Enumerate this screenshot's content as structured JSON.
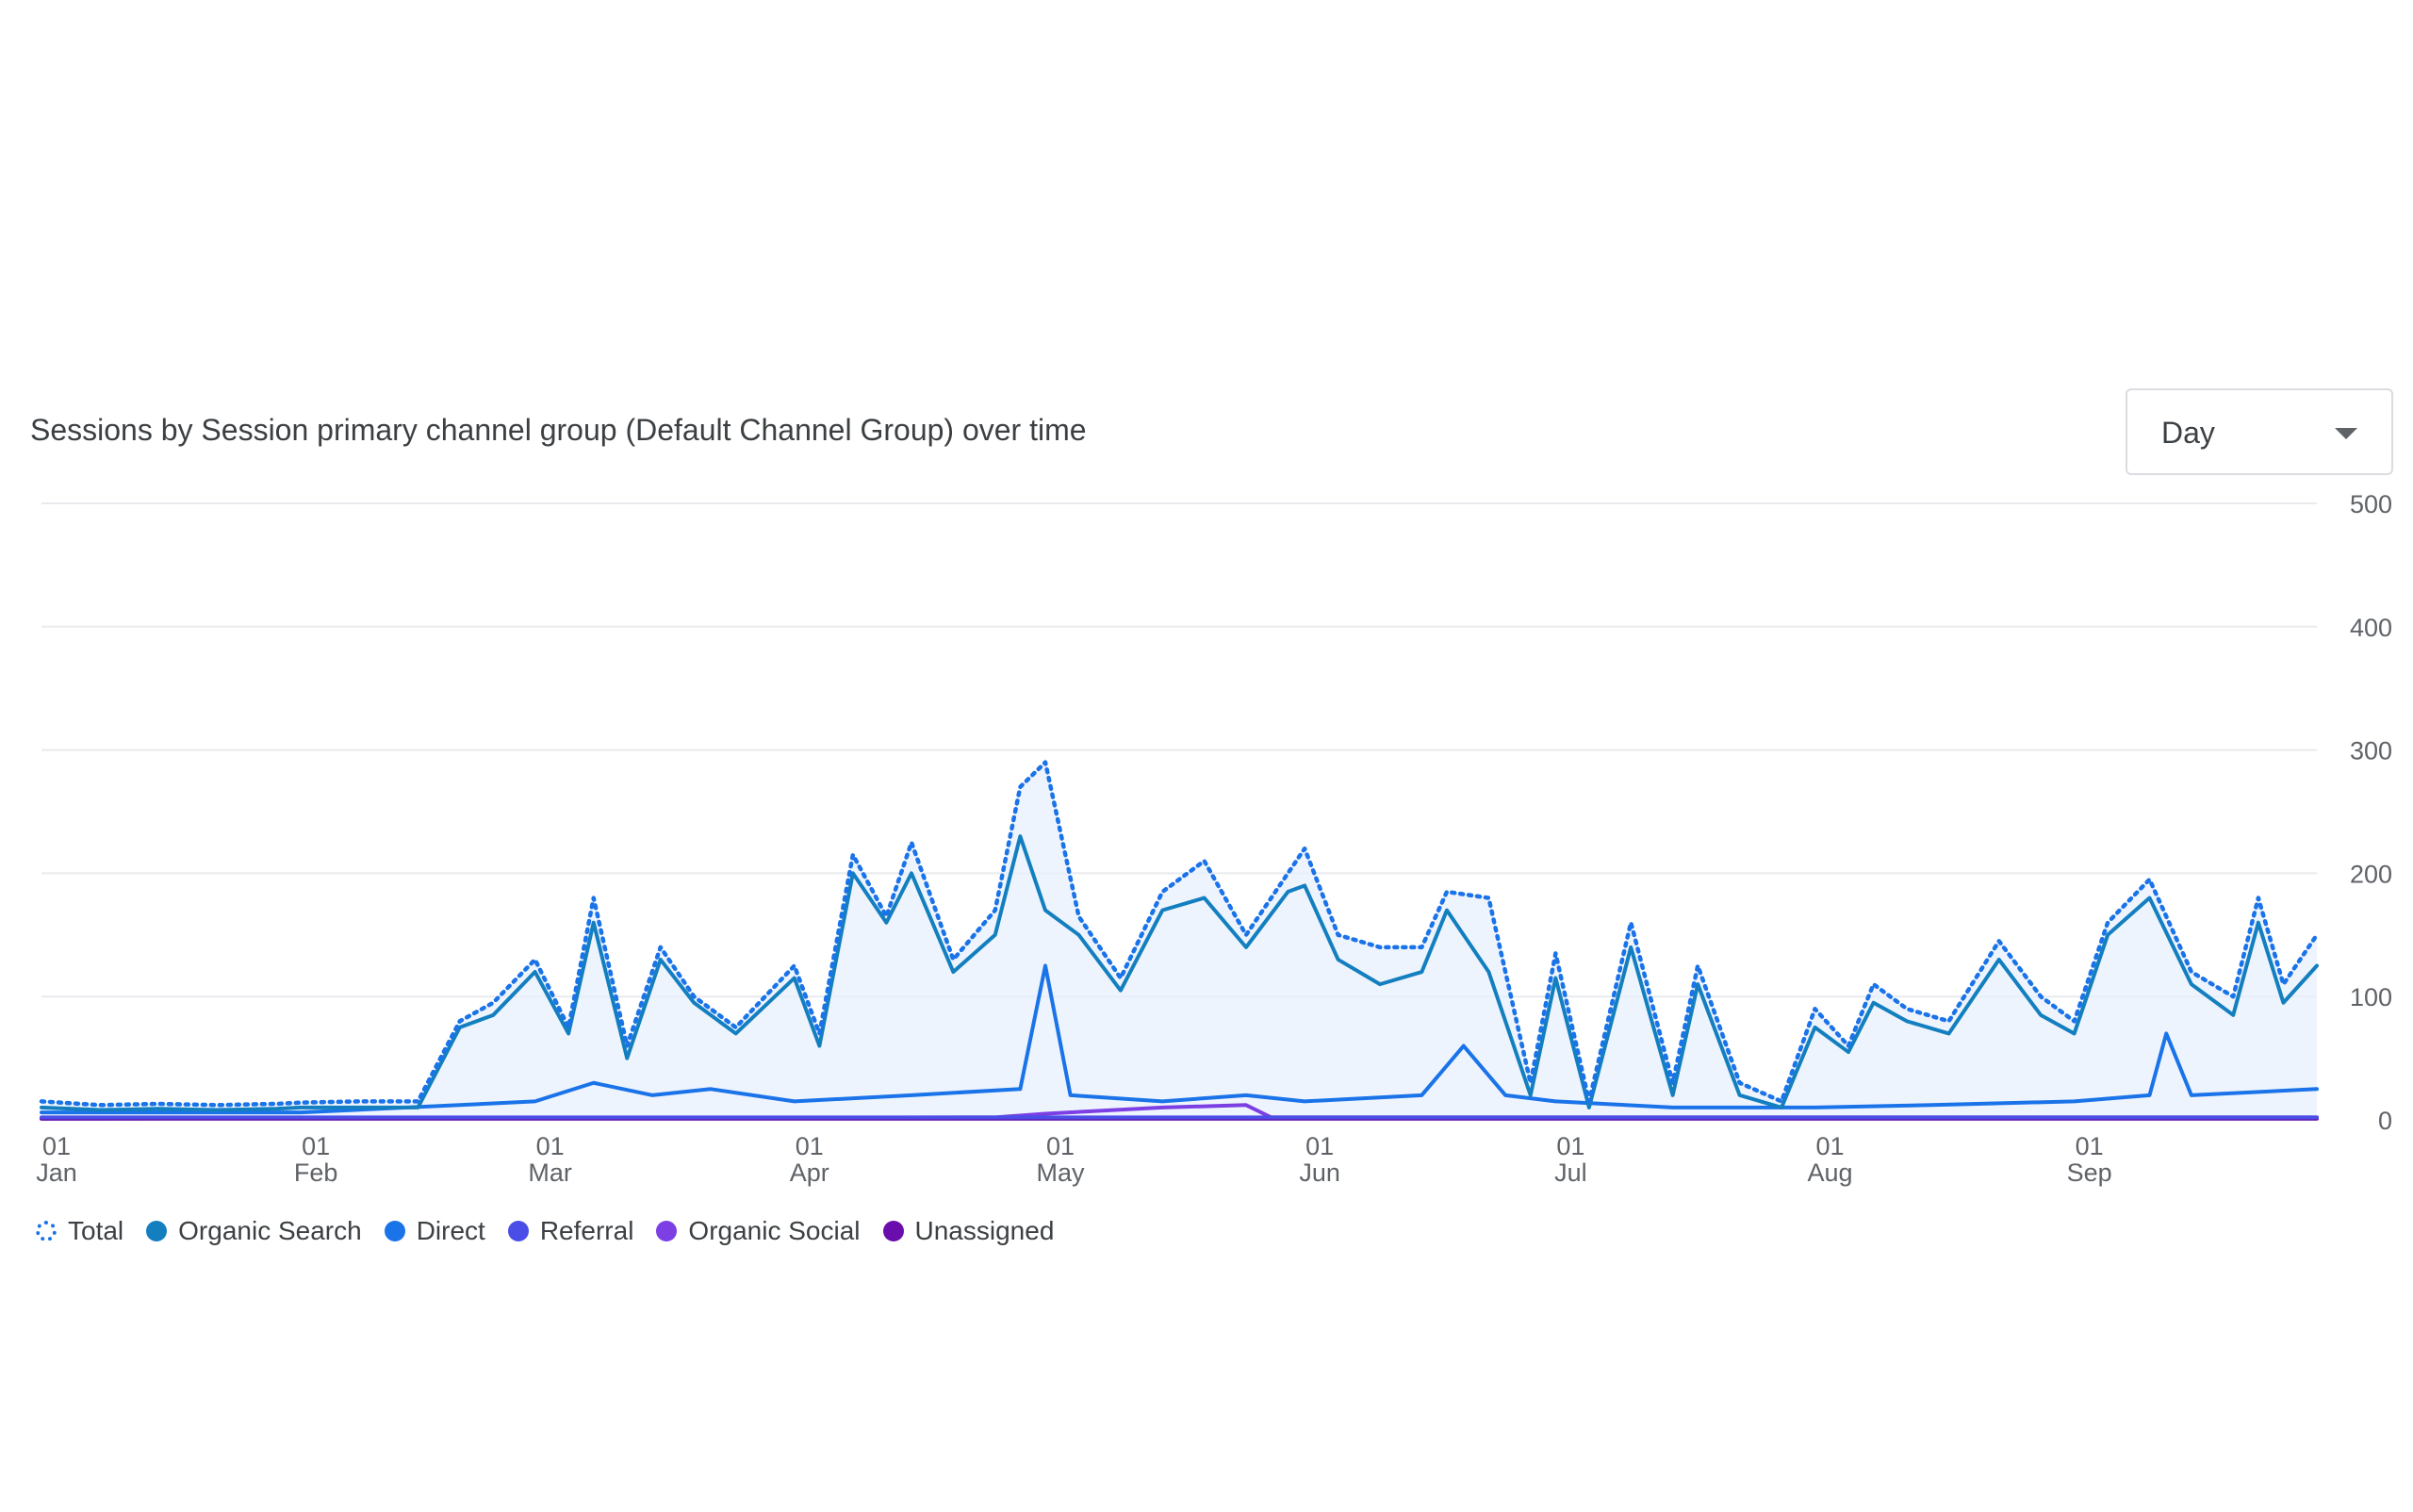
{
  "chart_data": {
    "type": "line",
    "title": "Sessions by Session primary channel group (Default Channel Group) over time",
    "granularity": "Day",
    "xlabel": "",
    "ylabel": "",
    "ylim": [
      0,
      500
    ],
    "y_ticks": [
      "500",
      "400",
      "300",
      "200",
      "100",
      "0"
    ],
    "x_tick_labels": [
      {
        "day": "01",
        "month": "Jan"
      },
      {
        "day": "01",
        "month": "Feb"
      },
      {
        "day": "01",
        "month": "Mar"
      },
      {
        "day": "01",
        "month": "Apr"
      },
      {
        "day": "01",
        "month": "May"
      },
      {
        "day": "01",
        "month": "Jun"
      },
      {
        "day": "01",
        "month": "Jul"
      },
      {
        "day": "01",
        "month": "Aug"
      },
      {
        "day": "01",
        "month": "Sep"
      }
    ],
    "grid": true,
    "legend_position": "bottom-left",
    "series": [
      {
        "name": "Total",
        "color": "#1a73e8",
        "style": "dotted",
        "area": true,
        "points": [
          [
            "Jan 01",
            15
          ],
          [
            "Jan 08",
            12
          ],
          [
            "Jan 15",
            13
          ],
          [
            "Jan 22",
            12
          ],
          [
            "Jan 29",
            13
          ],
          [
            "Feb 01",
            14
          ],
          [
            "Feb 08",
            15
          ],
          [
            "Feb 15",
            15
          ],
          [
            "Feb 20",
            80
          ],
          [
            "Feb 24",
            95
          ],
          [
            "Mar 01",
            130
          ],
          [
            "Mar 05",
            75
          ],
          [
            "Mar 08",
            180
          ],
          [
            "Mar 12",
            60
          ],
          [
            "Mar 16",
            140
          ],
          [
            "Mar 20",
            100
          ],
          [
            "Mar 25",
            75
          ],
          [
            "Apr 01",
            125
          ],
          [
            "Apr 04",
            70
          ],
          [
            "Apr 08",
            215
          ],
          [
            "Apr 12",
            165
          ],
          [
            "Apr 15",
            225
          ],
          [
            "Apr 20",
            130
          ],
          [
            "Apr 25",
            170
          ],
          [
            "Apr 28",
            270
          ],
          [
            "May 01",
            290
          ],
          [
            "May 05",
            165
          ],
          [
            "May 10",
            115
          ],
          [
            "May 15",
            185
          ],
          [
            "May 20",
            210
          ],
          [
            "May 25",
            150
          ],
          [
            "May 30",
            200
          ],
          [
            "Jun 01",
            220
          ],
          [
            "Jun 05",
            150
          ],
          [
            "Jun 10",
            140
          ],
          [
            "Jun 15",
            140
          ],
          [
            "Jun 18",
            185
          ],
          [
            "Jun 23",
            180
          ],
          [
            "Jun 28",
            30
          ],
          [
            "Jul 01",
            135
          ],
          [
            "Jul 05",
            15
          ],
          [
            "Jul 10",
            160
          ],
          [
            "Jul 15",
            30
          ],
          [
            "Jul 18",
            125
          ],
          [
            "Jul 23",
            30
          ],
          [
            "Jul 28",
            15
          ],
          [
            "Aug 01",
            90
          ],
          [
            "Aug 05",
            60
          ],
          [
            "Aug 08",
            110
          ],
          [
            "Aug 12",
            90
          ],
          [
            "Aug 17",
            80
          ],
          [
            "Aug 23",
            145
          ],
          [
            "Aug 28",
            100
          ],
          [
            "Sep 01",
            80
          ],
          [
            "Sep 05",
            160
          ],
          [
            "Sep 10",
            195
          ],
          [
            "Sep 15",
            120
          ],
          [
            "Sep 20",
            100
          ],
          [
            "Sep 23",
            180
          ],
          [
            "Sep 26",
            110
          ],
          [
            "Sep 30",
            150
          ]
        ]
      },
      {
        "name": "Organic Search",
        "color": "#137fbf",
        "style": "solid",
        "points": [
          [
            "Jan 01",
            10
          ],
          [
            "Jan 08",
            8
          ],
          [
            "Jan 15",
            9
          ],
          [
            "Jan 22",
            8
          ],
          [
            "Jan 29",
            9
          ],
          [
            "Feb 01",
            10
          ],
          [
            "Feb 08",
            10
          ],
          [
            "Feb 15",
            10
          ],
          [
            "Feb 20",
            75
          ],
          [
            "Feb 24",
            85
          ],
          [
            "Mar 01",
            120
          ],
          [
            "Mar 05",
            70
          ],
          [
            "Mar 08",
            160
          ],
          [
            "Mar 12",
            50
          ],
          [
            "Mar 16",
            130
          ],
          [
            "Mar 20",
            95
          ],
          [
            "Mar 25",
            70
          ],
          [
            "Apr 01",
            115
          ],
          [
            "Apr 04",
            60
          ],
          [
            "Apr 08",
            200
          ],
          [
            "Apr 12",
            160
          ],
          [
            "Apr 15",
            200
          ],
          [
            "Apr 20",
            120
          ],
          [
            "Apr 25",
            150
          ],
          [
            "Apr 28",
            230
          ],
          [
            "May 01",
            170
          ],
          [
            "May 05",
            150
          ],
          [
            "May 10",
            105
          ],
          [
            "May 15",
            170
          ],
          [
            "May 20",
            180
          ],
          [
            "May 25",
            140
          ],
          [
            "May 30",
            185
          ],
          [
            "Jun 01",
            190
          ],
          [
            "Jun 05",
            130
          ],
          [
            "Jun 10",
            110
          ],
          [
            "Jun 15",
            120
          ],
          [
            "Jun 18",
            170
          ],
          [
            "Jun 23",
            120
          ],
          [
            "Jun 28",
            20
          ],
          [
            "Jul 01",
            115
          ],
          [
            "Jul 05",
            10
          ],
          [
            "Jul 10",
            140
          ],
          [
            "Jul 15",
            20
          ],
          [
            "Jul 18",
            110
          ],
          [
            "Jul 23",
            20
          ],
          [
            "Jul 28",
            10
          ],
          [
            "Aug 01",
            75
          ],
          [
            "Aug 05",
            55
          ],
          [
            "Aug 08",
            95
          ],
          [
            "Aug 12",
            80
          ],
          [
            "Aug 17",
            70
          ],
          [
            "Aug 23",
            130
          ],
          [
            "Aug 28",
            85
          ],
          [
            "Sep 01",
            70
          ],
          [
            "Sep 05",
            150
          ],
          [
            "Sep 10",
            180
          ],
          [
            "Sep 15",
            110
          ],
          [
            "Sep 20",
            85
          ],
          [
            "Sep 23",
            160
          ],
          [
            "Sep 26",
            95
          ],
          [
            "Sep 30",
            125
          ]
        ]
      },
      {
        "name": "Direct",
        "color": "#1a73e8",
        "style": "solid",
        "points": [
          [
            "Jan 01",
            6
          ],
          [
            "Feb 01",
            6
          ],
          [
            "Feb 20",
            12
          ],
          [
            "Mar 01",
            15
          ],
          [
            "Mar 08",
            30
          ],
          [
            "Mar 15",
            20
          ],
          [
            "Mar 22",
            25
          ],
          [
            "Apr 01",
            15
          ],
          [
            "Apr 15",
            20
          ],
          [
            "Apr 28",
            25
          ],
          [
            "May 01",
            125
          ],
          [
            "May 04",
            20
          ],
          [
            "May 15",
            15
          ],
          [
            "May 25",
            20
          ],
          [
            "Jun 01",
            15
          ],
          [
            "Jun 15",
            20
          ],
          [
            "Jun 20",
            60
          ],
          [
            "Jun 25",
            20
          ],
          [
            "Jul 01",
            15
          ],
          [
            "Jul 15",
            10
          ],
          [
            "Aug 01",
            10
          ],
          [
            "Aug 15",
            12
          ],
          [
            "Sep 01",
            15
          ],
          [
            "Sep 10",
            20
          ],
          [
            "Sep 12",
            70
          ],
          [
            "Sep 15",
            20
          ],
          [
            "Sep 30",
            25
          ]
        ]
      },
      {
        "name": "Referral",
        "color": "#4a4ee6",
        "style": "solid",
        "points": [
          [
            "Jan 01",
            2
          ],
          [
            "Sep 30",
            2
          ]
        ]
      },
      {
        "name": "Organic Social",
        "color": "#7b3fe4",
        "style": "solid",
        "points": [
          [
            "Jan 01",
            1
          ],
          [
            "Apr 25",
            2
          ],
          [
            "May 01",
            5
          ],
          [
            "May 15",
            10
          ],
          [
            "May 25",
            12
          ],
          [
            "May 28",
            2
          ],
          [
            "Sep 30",
            2
          ]
        ]
      },
      {
        "name": "Unassigned",
        "color": "#6a0dad",
        "style": "solid",
        "points": [
          [
            "Jan 01",
            1
          ],
          [
            "Sep 30",
            1
          ]
        ]
      }
    ]
  }
}
